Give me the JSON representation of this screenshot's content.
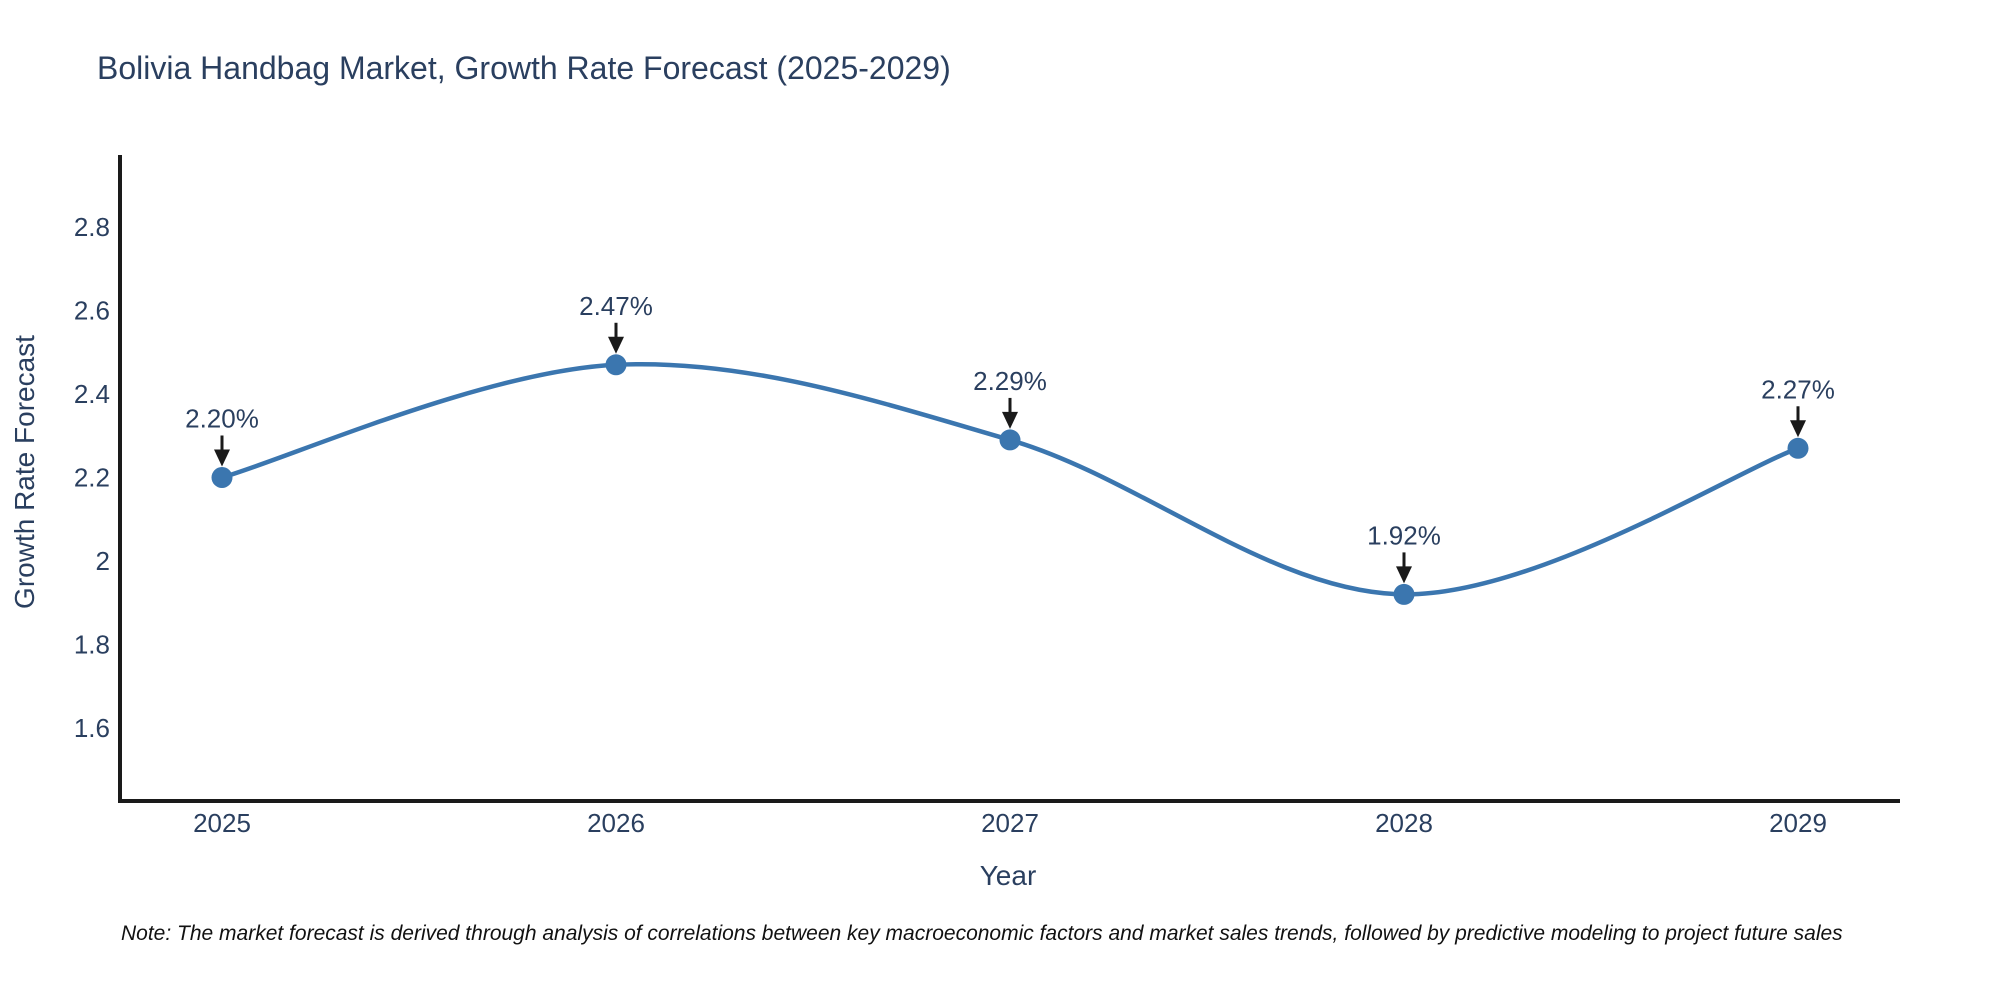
{
  "title": "Bolivia Handbag Market, Growth Rate Forecast (2025-2029)",
  "note": "Note: The market forecast is derived through analysis of correlations between key macroeconomic factors and market sales trends, followed by predictive modeling to project future sales",
  "colors": {
    "accent": "#3b76af",
    "text": "#2a3f5f",
    "axis": "#1a1a1a",
    "arrow": "#1a1a1a",
    "note_text": "#111111",
    "background": "#ffffff"
  },
  "chart_data": {
    "type": "line",
    "line_shape": "spline",
    "title": "Bolivia Handbag Market, Growth Rate Forecast (2025-2029)",
    "xlabel": "Year",
    "ylabel": "Growth Rate Forecast",
    "x": [
      2025,
      2026,
      2027,
      2028,
      2029
    ],
    "xtick_labels": [
      "2025",
      "2026",
      "2027",
      "2028",
      "2029"
    ],
    "series": [
      {
        "name": "Growth Rate Forecast",
        "values": [
          2.2,
          2.47,
          2.29,
          1.92,
          2.27
        ]
      }
    ],
    "point_labels": [
      "2.20%",
      "2.47%",
      "2.29%",
      "1.92%",
      "2.27%"
    ],
    "yticks": [
      2.8,
      2.6,
      2.4,
      2.2,
      2,
      1.8,
      1.6
    ],
    "ytick_labels": [
      "2.8",
      "2.6",
      "2.4",
      "2.2",
      "2",
      "1.8",
      "1.6"
    ],
    "ylim": [
      1.43,
      2.97
    ],
    "xlim": [
      2024.75,
      2029.25
    ],
    "grid": false,
    "legend": "none",
    "marker": "circle"
  }
}
